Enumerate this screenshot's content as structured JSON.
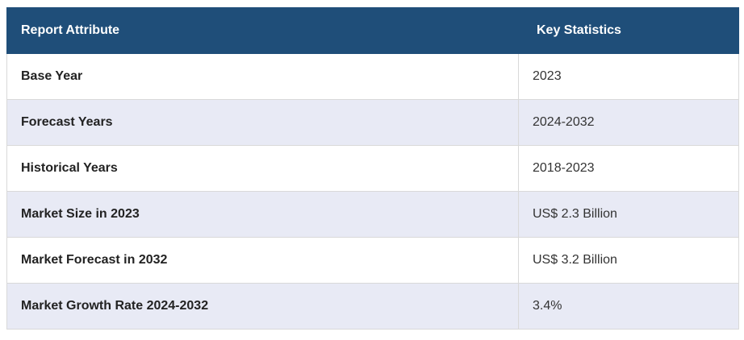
{
  "table": {
    "headers": [
      "Report Attribute",
      "Key Statistics"
    ],
    "rows": [
      {
        "attribute": "Base Year",
        "value": "2023"
      },
      {
        "attribute": "Forecast Years",
        "value": "2024-2032"
      },
      {
        "attribute": "Historical Years",
        "value": "2018-2023"
      },
      {
        "attribute": "Market Size in 2023",
        "value": "US$ 2.3 Billion"
      },
      {
        "attribute": "Market Forecast in 2032",
        "value": "US$ 3.2 Billion"
      },
      {
        "attribute": "Market Growth Rate 2024-2032",
        "value": "3.4%"
      }
    ]
  },
  "colors": {
    "header_bg": "#1f4e79",
    "header_text": "#ffffff",
    "stripe_bg": "#e8eaf5",
    "border": "#d9d9d9"
  }
}
